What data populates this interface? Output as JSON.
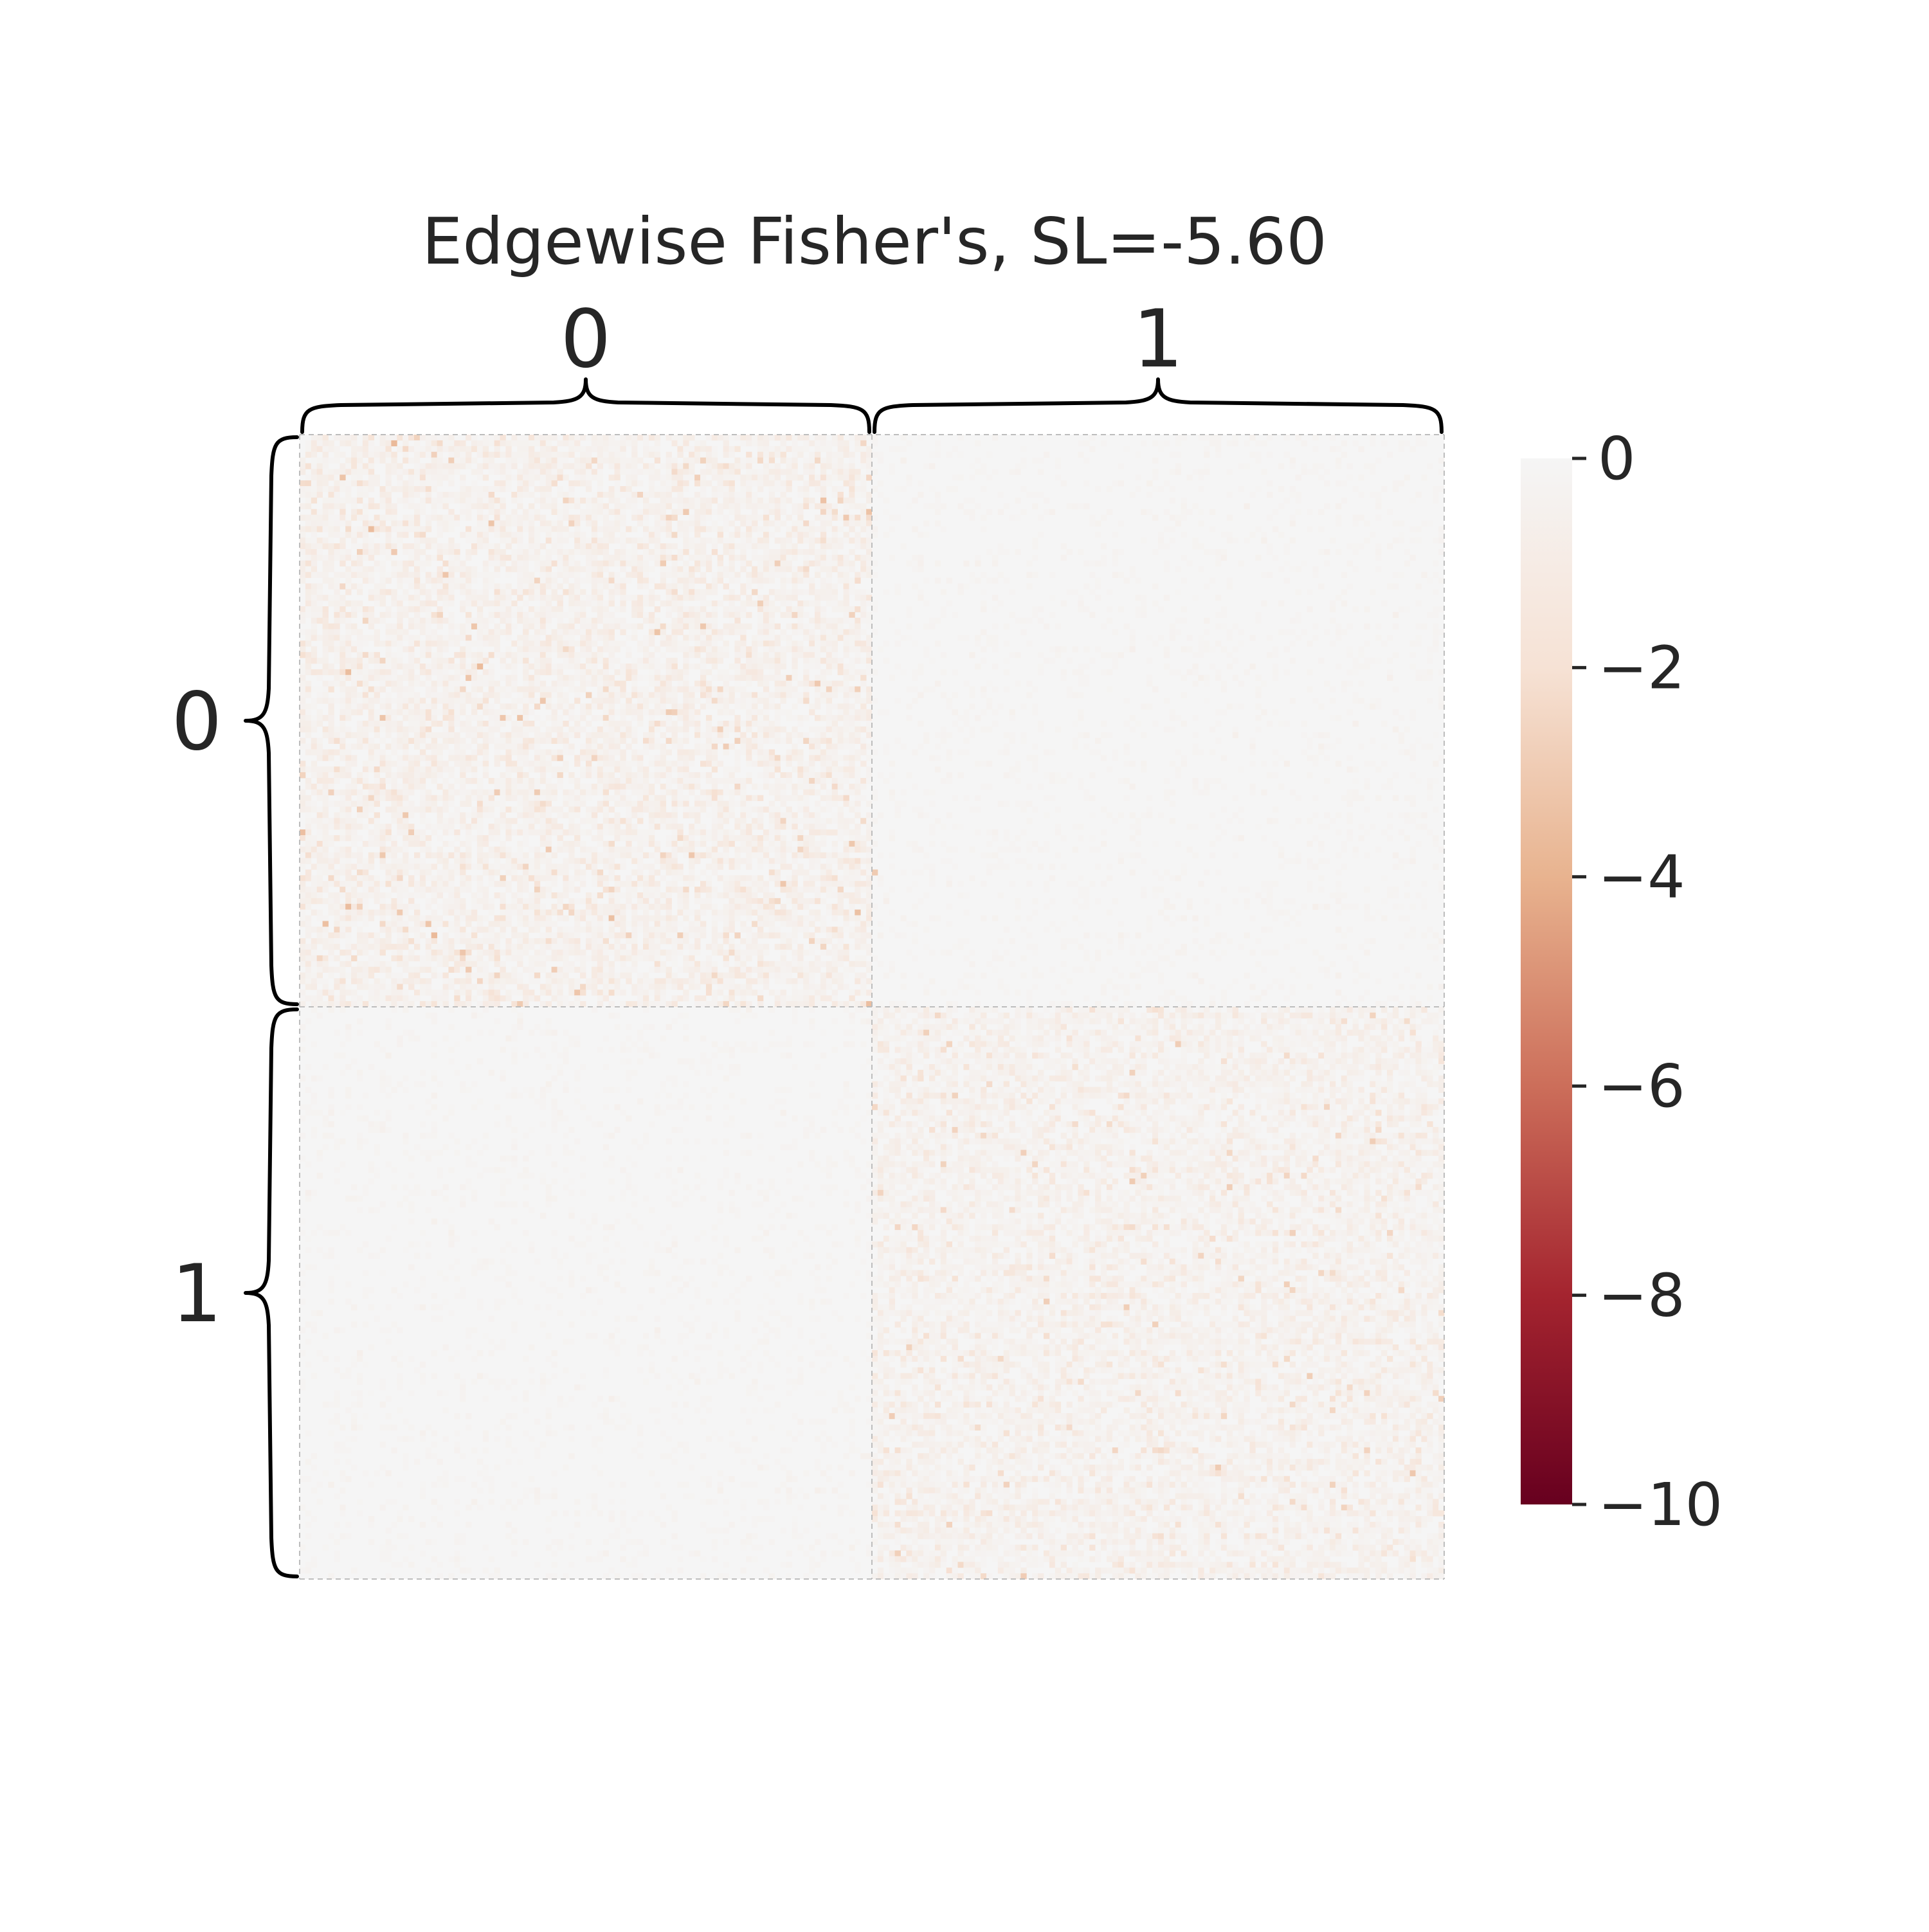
{
  "chart_data": {
    "type": "heatmap",
    "title": "Edgewise Fisher's, SL=-5.60",
    "blocks": [
      "0",
      "1"
    ],
    "row_group_labels": [
      "0",
      "1"
    ],
    "col_group_labels": [
      "0",
      "1"
    ],
    "grid_size_per_block": 100,
    "block_mean_values": [
      [
        -0.6,
        -0.1
      ],
      [
        -0.1,
        -0.5
      ]
    ],
    "notable_cells": [
      {
        "row": 76,
        "col": 100,
        "value": -3.0
      },
      {
        "row": 99,
        "col": 99,
        "value": -3.5
      },
      {
        "row": 99,
        "col": 38,
        "value": -3.0
      },
      {
        "row": 85,
        "col": 22,
        "value": -3.2
      },
      {
        "row": 22,
        "col": 83,
        "value": -2.8
      },
      {
        "row": 25,
        "col": 41,
        "value": -2.6
      }
    ],
    "colorbar": {
      "vmin": -10,
      "vmax": 0,
      "ticks": [
        0,
        -2,
        -4,
        -6,
        -8,
        -10
      ],
      "tick_labels": [
        "0",
        "−2",
        "−4",
        "−6",
        "−8",
        "−10"
      ],
      "colormap": "RdBu (negative half)",
      "colors": [
        "#f5f5f5",
        "#f6e2d5",
        "#e8b38f",
        "#cc6e5a",
        "#a4242f",
        "#67001f"
      ]
    },
    "grid": "dashed block boundaries",
    "legend": "colorbar right"
  }
}
